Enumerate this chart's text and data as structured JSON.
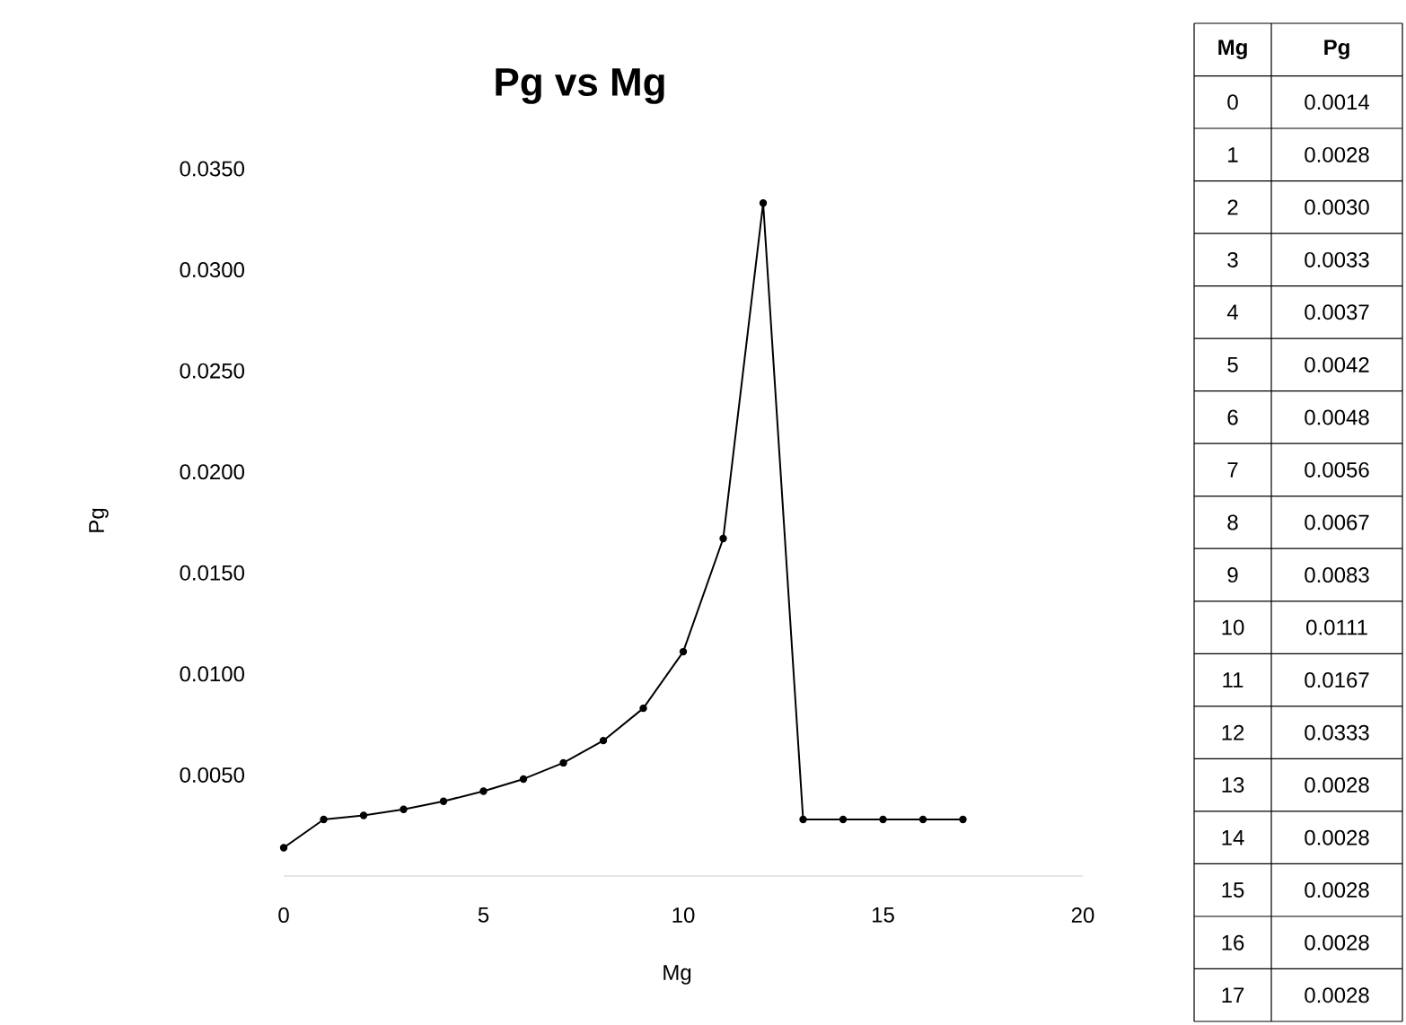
{
  "chart_data": {
    "type": "line",
    "title": "Pg vs Mg",
    "xlabel": "Mg",
    "ylabel": "Pg",
    "x": [
      0,
      1,
      2,
      3,
      4,
      5,
      6,
      7,
      8,
      9,
      10,
      11,
      12,
      13,
      14,
      15,
      16,
      17
    ],
    "series": [
      {
        "color": "#000000",
        "values": [
          0.0014,
          0.0028,
          0.003,
          0.0033,
          0.0037,
          0.0042,
          0.0048,
          0.0056,
          0.0067,
          0.0083,
          0.0111,
          0.0167,
          0.0333,
          0.0028,
          0.0028,
          0.0028,
          0.0028,
          0.0028
        ]
      }
    ],
    "xlim": [
      0,
      20
    ],
    "xticks": [
      0,
      5,
      10,
      15,
      20
    ],
    "ylim": [
      0,
      0.035
    ],
    "yticks": [
      {
        "value": 0.005,
        "label": "0.0050"
      },
      {
        "value": 0.01,
        "label": "0.0100"
      },
      {
        "value": 0.015,
        "label": "0.0150"
      },
      {
        "value": 0.02,
        "label": "0.0200"
      },
      {
        "value": 0.025,
        "label": "0.0250"
      },
      {
        "value": 0.03,
        "label": "0.0300"
      },
      {
        "value": 0.035,
        "label": "0.0350"
      }
    ],
    "annotations": [
      "Mg",
      "Pg",
      "0",
      "0.0014",
      "1",
      "0.0028",
      "2",
      "0.0030",
      "3",
      "0.0033",
      "4",
      "0.0037",
      "5",
      "0.0042",
      "6",
      "0.0048",
      "7",
      "0.0056",
      "8",
      "0.0067",
      "9",
      "0.0083",
      "10",
      "0.0111",
      "11",
      "0.0167",
      "12",
      "0.0333",
      "13",
      "0.0028",
      "14",
      "0.0028",
      "15",
      "0.0028",
      "16",
      "0.0028",
      "17",
      "0.0028"
    ],
    "grid": false,
    "marker": "circle",
    "line_style": "solid"
  }
}
